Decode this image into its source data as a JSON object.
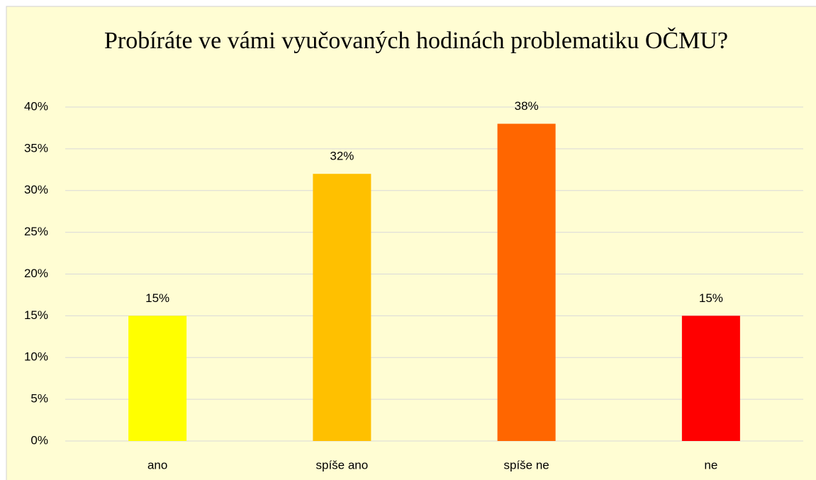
{
  "chart_data": {
    "type": "bar",
    "title": "Probíráte ve vámi vyučovaných hodinách problematiku OČMU?",
    "categories": [
      "ano",
      "spíše ano",
      "spíše ne",
      "ne"
    ],
    "values": [
      15,
      32,
      38,
      15
    ],
    "value_labels": [
      "15%",
      "32%",
      "38%",
      "15%"
    ],
    "colors": [
      "#ffff00",
      "#ffc000",
      "#ff6600",
      "#ff0000"
    ],
    "ylim": [
      0,
      40
    ],
    "yticks": [
      {
        "value": 0,
        "label": "0%"
      },
      {
        "value": 5,
        "label": "5%"
      },
      {
        "value": 10,
        "label": "10%"
      },
      {
        "value": 15,
        "label": "15%"
      },
      {
        "value": 20,
        "label": "20%"
      },
      {
        "value": 25,
        "label": "25%"
      },
      {
        "value": 30,
        "label": "30%"
      },
      {
        "value": 35,
        "label": "35%"
      },
      {
        "value": 40,
        "label": "40%"
      }
    ],
    "grid": true
  }
}
